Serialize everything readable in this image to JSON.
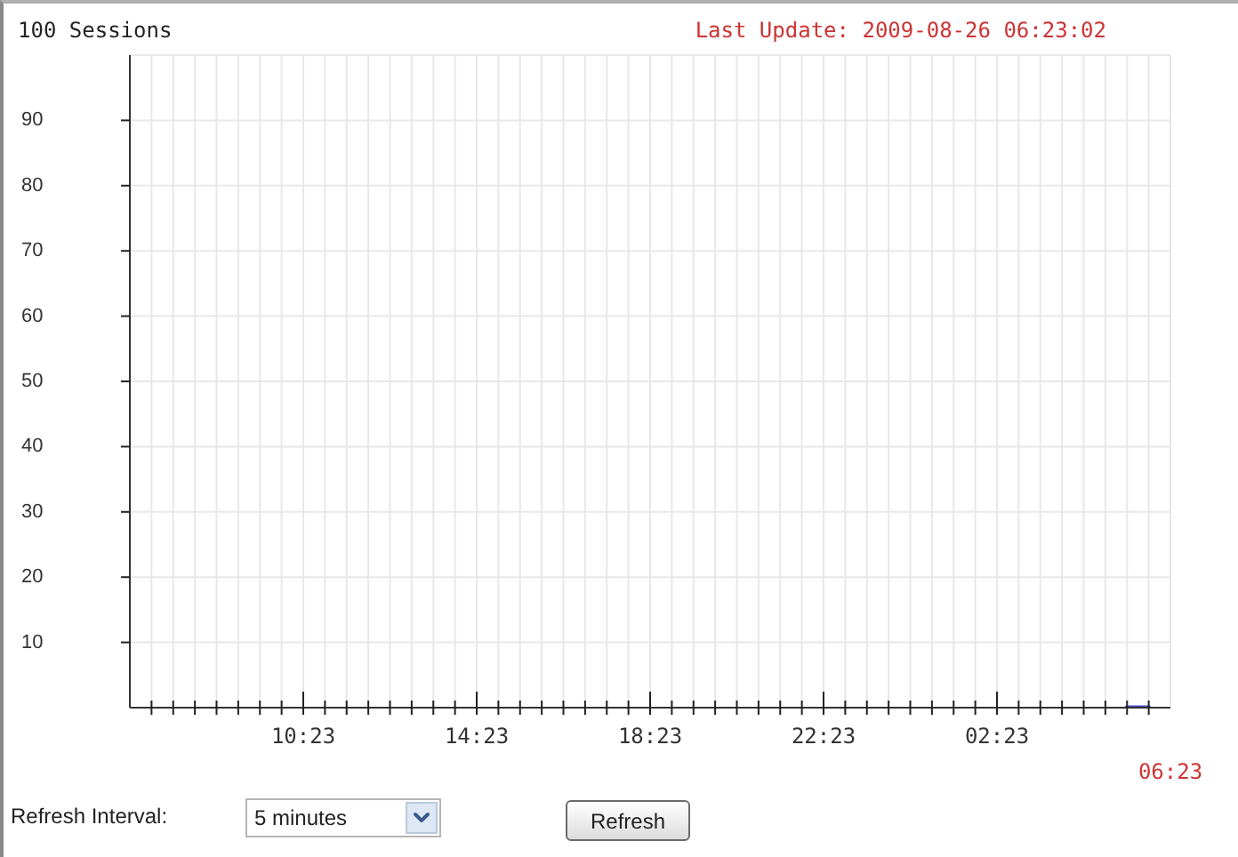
{
  "chart_data": {
    "type": "line",
    "ylabel": "100 Sessions",
    "annotations": [
      "Last Update: 2009-08-26 06:23:02",
      "06:23",
      "Refresh Interval:",
      "5 minutes",
      "Refresh"
    ],
    "x": [
      "2009-08-26T05:23",
      "2009-08-26T05:38",
      "2009-08-26T05:53"
    ],
    "series": [
      {
        "color": "#4646c8",
        "values": [
          0,
          0,
          0
        ]
      }
    ],
    "xlim": [
      "2009-08-25T06:23",
      "2009-08-26T06:23"
    ],
    "xticks": [
      {
        "value": "2009-08-25T06:53",
        "label": null
      },
      {
        "value": "2009-08-25T07:23",
        "label": null
      },
      {
        "value": "2009-08-25T07:53",
        "label": null
      },
      {
        "value": "2009-08-25T08:23",
        "label": null
      },
      {
        "value": "2009-08-25T08:53",
        "label": null
      },
      {
        "value": "2009-08-25T09:23",
        "label": null
      },
      {
        "value": "2009-08-25T09:53",
        "label": null
      },
      {
        "value": "2009-08-25T10:23",
        "label": "10:23"
      },
      {
        "value": "2009-08-25T10:53",
        "label": null
      },
      {
        "value": "2009-08-25T11:23",
        "label": null
      },
      {
        "value": "2009-08-25T11:53",
        "label": null
      },
      {
        "value": "2009-08-25T12:23",
        "label": null
      },
      {
        "value": "2009-08-25T12:53",
        "label": null
      },
      {
        "value": "2009-08-25T13:23",
        "label": null
      },
      {
        "value": "2009-08-25T13:53",
        "label": null
      },
      {
        "value": "2009-08-25T14:23",
        "label": "14:23"
      },
      {
        "value": "2009-08-25T14:53",
        "label": null
      },
      {
        "value": "2009-08-25T15:23",
        "label": null
      },
      {
        "value": "2009-08-25T15:53",
        "label": null
      },
      {
        "value": "2009-08-25T16:23",
        "label": null
      },
      {
        "value": "2009-08-25T16:53",
        "label": null
      },
      {
        "value": "2009-08-25T17:23",
        "label": null
      },
      {
        "value": "2009-08-25T17:53",
        "label": null
      },
      {
        "value": "2009-08-25T18:23",
        "label": "18:23"
      },
      {
        "value": "2009-08-25T18:53",
        "label": null
      },
      {
        "value": "2009-08-25T19:23",
        "label": null
      },
      {
        "value": "2009-08-25T19:53",
        "label": null
      },
      {
        "value": "2009-08-25T20:23",
        "label": null
      },
      {
        "value": "2009-08-25T20:53",
        "label": null
      },
      {
        "value": "2009-08-25T21:23",
        "label": null
      },
      {
        "value": "2009-08-25T21:53",
        "label": null
      },
      {
        "value": "2009-08-25T22:23",
        "label": "22:23"
      },
      {
        "value": "2009-08-25T22:53",
        "label": null
      },
      {
        "value": "2009-08-25T23:23",
        "label": null
      },
      {
        "value": "2009-08-25T23:53",
        "label": null
      },
      {
        "value": "2009-08-26T00:23",
        "label": null
      },
      {
        "value": "2009-08-26T00:53",
        "label": null
      },
      {
        "value": "2009-08-26T01:23",
        "label": null
      },
      {
        "value": "2009-08-26T01:53",
        "label": null
      },
      {
        "value": "2009-08-26T02:23",
        "label": "02:23"
      },
      {
        "value": "2009-08-26T02:53",
        "label": null
      },
      {
        "value": "2009-08-26T03:23",
        "label": null
      },
      {
        "value": "2009-08-26T03:53",
        "label": null
      },
      {
        "value": "2009-08-26T04:23",
        "label": null
      },
      {
        "value": "2009-08-26T04:53",
        "label": null
      },
      {
        "value": "2009-08-26T05:23",
        "label": null
      },
      {
        "value": "2009-08-26T05:53",
        "label": null
      }
    ],
    "ylim": [
      0,
      100
    ],
    "yticks": [
      10,
      20,
      30,
      40,
      50,
      60,
      70,
      80,
      90
    ],
    "grid": true
  }
}
